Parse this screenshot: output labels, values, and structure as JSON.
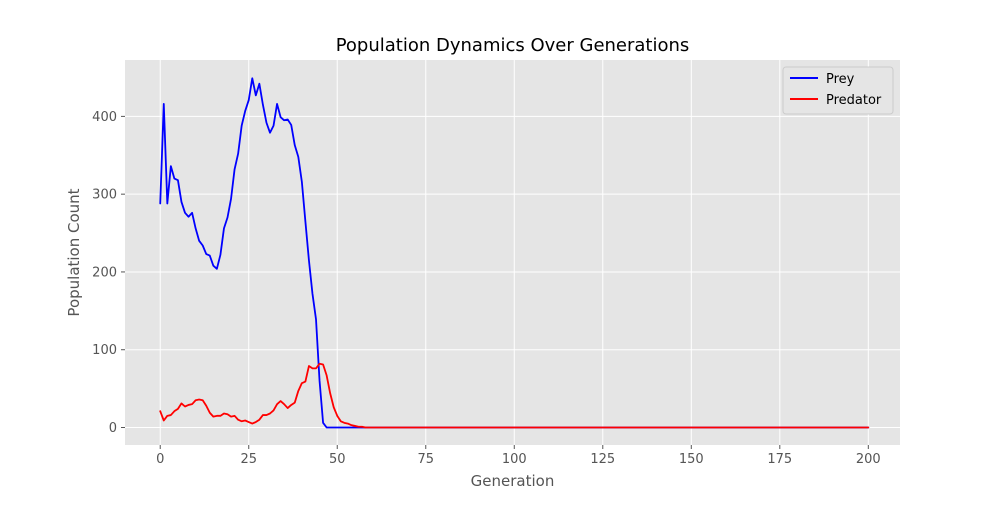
{
  "chart_data": {
    "type": "line",
    "title": "Population Dynamics Over Generations",
    "xlabel": "Generation",
    "ylabel": "Population Count",
    "xlim": [
      -9.95,
      208.95
    ],
    "ylim": [
      -22.5,
      472.5
    ],
    "xticks": [
      0,
      25,
      50,
      75,
      100,
      125,
      150,
      175,
      200
    ],
    "yticks": [
      0,
      100,
      200,
      300,
      400
    ],
    "grid": true,
    "legend_position": "top-right",
    "series": [
      {
        "name": "Prey",
        "color": "#0000ff",
        "points": [
          [
            0,
            288
          ],
          [
            1,
            416
          ],
          [
            2,
            288
          ],
          [
            3,
            336
          ],
          [
            4,
            320
          ],
          [
            5,
            318
          ],
          [
            6,
            290
          ],
          [
            7,
            276
          ],
          [
            8,
            271
          ],
          [
            9,
            276
          ],
          [
            10,
            256
          ],
          [
            11,
            240
          ],
          [
            12,
            234
          ],
          [
            13,
            223
          ],
          [
            14,
            221
          ],
          [
            15,
            208
          ],
          [
            16,
            204
          ],
          [
            17,
            222
          ],
          [
            18,
            256
          ],
          [
            19,
            270
          ],
          [
            20,
            294
          ],
          [
            21,
            332
          ],
          [
            22,
            352
          ],
          [
            23,
            388
          ],
          [
            24,
            407
          ],
          [
            25,
            421
          ],
          [
            26,
            449
          ],
          [
            27,
            427
          ],
          [
            28,
            442
          ],
          [
            29,
            415
          ],
          [
            30,
            392
          ],
          [
            31,
            379
          ],
          [
            32,
            388
          ],
          [
            33,
            416
          ],
          [
            34,
            399
          ],
          [
            35,
            395
          ],
          [
            36,
            396
          ],
          [
            37,
            389
          ],
          [
            38,
            363
          ],
          [
            39,
            348
          ],
          [
            40,
            316
          ],
          [
            41,
            265
          ],
          [
            42,
            215
          ],
          [
            43,
            172
          ],
          [
            44,
            139
          ],
          [
            45,
            60
          ],
          [
            46,
            6
          ],
          [
            47,
            0
          ],
          [
            48,
            0
          ],
          [
            49,
            0
          ],
          [
            50,
            0
          ],
          [
            200,
            0
          ]
        ]
      },
      {
        "name": "Predator",
        "color": "#ff0000",
        "points": [
          [
            0,
            21
          ],
          [
            1,
            9
          ],
          [
            2,
            15
          ],
          [
            3,
            16
          ],
          [
            4,
            21
          ],
          [
            5,
            24
          ],
          [
            6,
            31
          ],
          [
            7,
            27
          ],
          [
            8,
            29
          ],
          [
            9,
            30
          ],
          [
            10,
            35
          ],
          [
            11,
            36
          ],
          [
            12,
            35
          ],
          [
            13,
            28
          ],
          [
            14,
            19
          ],
          [
            15,
            14
          ],
          [
            16,
            15
          ],
          [
            17,
            15
          ],
          [
            18,
            18
          ],
          [
            19,
            17
          ],
          [
            20,
            14
          ],
          [
            21,
            15
          ],
          [
            22,
            10
          ],
          [
            23,
            8
          ],
          [
            24,
            9
          ],
          [
            25,
            7
          ],
          [
            26,
            5
          ],
          [
            27,
            7
          ],
          [
            28,
            10
          ],
          [
            29,
            16
          ],
          [
            30,
            16
          ],
          [
            31,
            18
          ],
          [
            32,
            22
          ],
          [
            33,
            30
          ],
          [
            34,
            34
          ],
          [
            35,
            30
          ],
          [
            36,
            25
          ],
          [
            37,
            29
          ],
          [
            38,
            32
          ],
          [
            39,
            47
          ],
          [
            40,
            57
          ],
          [
            41,
            59
          ],
          [
            42,
            79
          ],
          [
            43,
            76
          ],
          [
            44,
            76
          ],
          [
            45,
            82
          ],
          [
            46,
            81
          ],
          [
            47,
            67
          ],
          [
            48,
            44
          ],
          [
            49,
            26
          ],
          [
            50,
            15
          ],
          [
            51,
            8
          ],
          [
            52,
            6
          ],
          [
            53,
            5
          ],
          [
            54,
            3
          ],
          [
            55,
            2
          ],
          [
            56,
            1
          ],
          [
            57,
            1
          ],
          [
            58,
            0
          ],
          [
            200,
            0
          ]
        ]
      }
    ]
  }
}
